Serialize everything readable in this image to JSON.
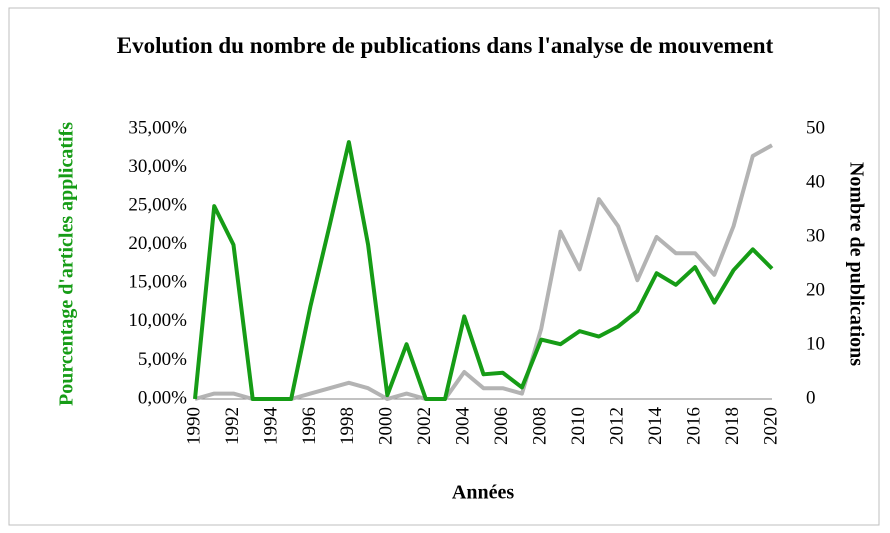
{
  "chart_data": {
    "type": "line",
    "title": "Evolution du nombre de publications dans l'analyse de mouvement",
    "xlabel": "Années",
    "ylabel": "Pourcentage d'articles applicatifs",
    "y2label": "Nombre de publications",
    "x": [
      1990,
      1991,
      1992,
      1993,
      1994,
      1995,
      1996,
      1997,
      1998,
      1999,
      2000,
      2001,
      2002,
      2003,
      2004,
      2005,
      2006,
      2007,
      2008,
      2009,
      2010,
      2011,
      2012,
      2013,
      2014,
      2015,
      2016,
      2017,
      2018,
      2019,
      2020
    ],
    "xlim": [
      1990,
      2020
    ],
    "xticks": [
      1990,
      1992,
      1994,
      1996,
      1998,
      2000,
      2002,
      2004,
      2006,
      2008,
      2010,
      2012,
      2014,
      2016,
      2018,
      2020
    ],
    "ylim": [
      0,
      35
    ],
    "yticks": [
      {
        "value": 0,
        "label": "0,00%"
      },
      {
        "value": 5,
        "label": "5,00%"
      },
      {
        "value": 10,
        "label": "10,00%"
      },
      {
        "value": 15,
        "label": "15,00%"
      },
      {
        "value": 20,
        "label": "20,00%"
      },
      {
        "value": 25,
        "label": "25,00%"
      },
      {
        "value": 30,
        "label": "30,00%"
      },
      {
        "value": 35,
        "label": "35,00%"
      }
    ],
    "y2lim": [
      0,
      50
    ],
    "y2ticks": [
      0,
      10,
      20,
      30,
      40,
      50
    ],
    "series": [
      {
        "name": "Pourcentage d'articles applicatifs",
        "color": "#169c16",
        "values": [
          0,
          25,
          20,
          0,
          0,
          0,
          12,
          22.5,
          33.3,
          20,
          0.5,
          7.1,
          0,
          0,
          10.7,
          3.2,
          3.4,
          1.5,
          7.7,
          7.1,
          8.8,
          8.1,
          9.4,
          11.4,
          16.3,
          14.8,
          17.1,
          12.5,
          16.7,
          19.4,
          16.9
        ]
      },
      {
        "name": "Nombre de publications",
        "color": "#b3b3b3",
        "axis": "y2",
        "values": [
          0,
          1,
          1,
          0,
          0,
          0,
          1,
          2,
          3,
          2,
          0,
          1,
          0,
          0,
          5,
          2,
          2,
          1,
          13,
          31,
          24,
          37,
          32,
          22,
          30,
          27,
          27,
          23,
          32,
          45,
          47
        ]
      }
    ]
  }
}
